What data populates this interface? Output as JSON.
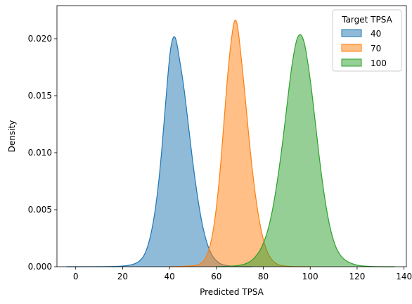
{
  "chart_data": {
    "type": "area",
    "xlabel": "Predicted TPSA",
    "ylabel": "Density",
    "xlim": [
      -8,
      141
    ],
    "ylim": [
      0,
      0.0229
    ],
    "xticks": [
      0,
      20,
      40,
      60,
      80,
      100,
      120,
      140
    ],
    "xtick_labels": [
      "0",
      "20",
      "40",
      "60",
      "80",
      "100",
      "120",
      "140"
    ],
    "yticks": [
      0.0,
      0.005,
      0.01,
      0.015,
      0.02
    ],
    "ytick_labels": [
      "0.000",
      "0.005",
      "0.010",
      "0.015",
      "0.020"
    ],
    "grid": false,
    "legend": {
      "title": "Target TPSA",
      "placement": "top-right",
      "entries": [
        "40",
        "70",
        "100"
      ]
    },
    "series": [
      {
        "name": "40",
        "color": "#1f77b4",
        "x": [
          -4,
          10,
          20,
          25,
          28,
          30,
          32,
          34,
          36,
          38,
          40,
          41,
          42,
          43,
          44,
          46,
          48,
          50,
          52,
          54,
          56,
          58,
          60,
          62,
          66,
          70,
          75
        ],
        "y": [
          0,
          0,
          3e-05,
          0.0002,
          0.0006,
          0.0013,
          0.0027,
          0.005,
          0.0085,
          0.0135,
          0.0185,
          0.0198,
          0.0203,
          0.0198,
          0.0185,
          0.016,
          0.0125,
          0.009,
          0.006,
          0.0036,
          0.002,
          0.001,
          0.0005,
          0.0002,
          3e-05,
          0,
          0
        ]
      },
      {
        "name": "70",
        "color": "#ff7f0e",
        "x": [
          40,
          50,
          53,
          55,
          57,
          59,
          61,
          63,
          65,
          67,
          68,
          69,
          70,
          72,
          74,
          76,
          78,
          80,
          82,
          84,
          86,
          88,
          92,
          100
        ],
        "y": [
          0,
          5e-05,
          0.0002,
          0.0006,
          0.0015,
          0.0035,
          0.007,
          0.012,
          0.0175,
          0.021,
          0.0218,
          0.0212,
          0.0195,
          0.0155,
          0.011,
          0.0072,
          0.0043,
          0.0023,
          0.0011,
          0.0005,
          0.0002,
          8e-05,
          1e-05,
          0
        ]
      },
      {
        "name": "100",
        "color": "#2ca02c",
        "x": [
          60,
          68,
          72,
          75,
          78,
          80,
          82,
          84,
          86,
          88,
          90,
          92,
          94,
          95,
          96,
          97,
          98,
          100,
          102,
          104,
          106,
          108,
          110,
          112,
          115,
          120,
          125,
          130,
          136
        ],
        "y": [
          0,
          5e-05,
          0.0002,
          0.0005,
          0.0012,
          0.002,
          0.0032,
          0.005,
          0.0075,
          0.0105,
          0.014,
          0.0175,
          0.0198,
          0.0203,
          0.0204,
          0.02,
          0.0192,
          0.0165,
          0.013,
          0.0093,
          0.0062,
          0.0038,
          0.0022,
          0.0012,
          0.0005,
          0.0001,
          2e-05,
          0,
          0
        ]
      }
    ]
  }
}
